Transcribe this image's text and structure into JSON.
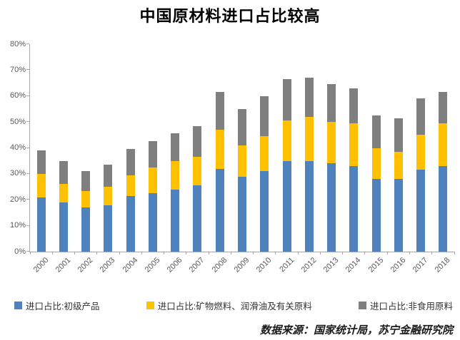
{
  "page": {
    "title": "中国原材料进口占比较高"
  },
  "footer": {
    "source": "数据来源：国家统计局，苏宁金融研究院"
  },
  "chart_data": {
    "type": "bar",
    "stacked": true,
    "title": "中国原材料进口占比较高",
    "categories": [
      "2000",
      "2001",
      "2002",
      "2003",
      "2004",
      "2005",
      "2006",
      "2007",
      "2008",
      "2009",
      "2010",
      "2011",
      "2012",
      "2013",
      "2014",
      "2015",
      "2016",
      "2017",
      "2018"
    ],
    "series": [
      {
        "name": "进口占比:初级产品",
        "color": "#4F81BD",
        "values": [
          21.0,
          19.0,
          17.0,
          18.0,
          21.5,
          22.5,
          24.0,
          25.5,
          32.0,
          29.0,
          31.0,
          35.0,
          35.0,
          34.0,
          33.0,
          28.0,
          28.0,
          31.5,
          33.0
        ]
      },
      {
        "name": "进口占比:矿物燃料、润滑油及有关原料",
        "color": "#FFC000",
        "values": [
          9.0,
          7.0,
          6.5,
          7.0,
          8.0,
          10.0,
          11.0,
          11.0,
          15.0,
          12.0,
          13.5,
          15.5,
          17.0,
          16.0,
          16.5,
          12.0,
          10.5,
          13.5,
          16.5
        ]
      },
      {
        "name": "进口占比:非食用原料",
        "color": "#7F7F7F",
        "values": [
          9.0,
          9.0,
          7.5,
          8.5,
          10.0,
          10.0,
          10.5,
          12.0,
          14.5,
          14.0,
          15.5,
          16.0,
          15.0,
          14.5,
          13.5,
          12.5,
          13.0,
          14.0,
          12.0
        ]
      }
    ],
    "totals": [
      39.0,
      35.0,
      31.0,
      33.5,
      39.5,
      42.5,
      45.5,
      48.5,
      61.5,
      55.0,
      60.0,
      66.5,
      67.0,
      64.5,
      63.0,
      52.5,
      51.5,
      59.0,
      61.5
    ],
    "ylim": [
      0,
      80
    ],
    "yticks": [
      "0%",
      "10%",
      "20%",
      "30%",
      "40%",
      "50%",
      "60%",
      "70%",
      "80%"
    ],
    "grid": false,
    "legend_position": "bottom",
    "axis_color": "#a6a6a6",
    "tick_label_color": "#595959"
  }
}
